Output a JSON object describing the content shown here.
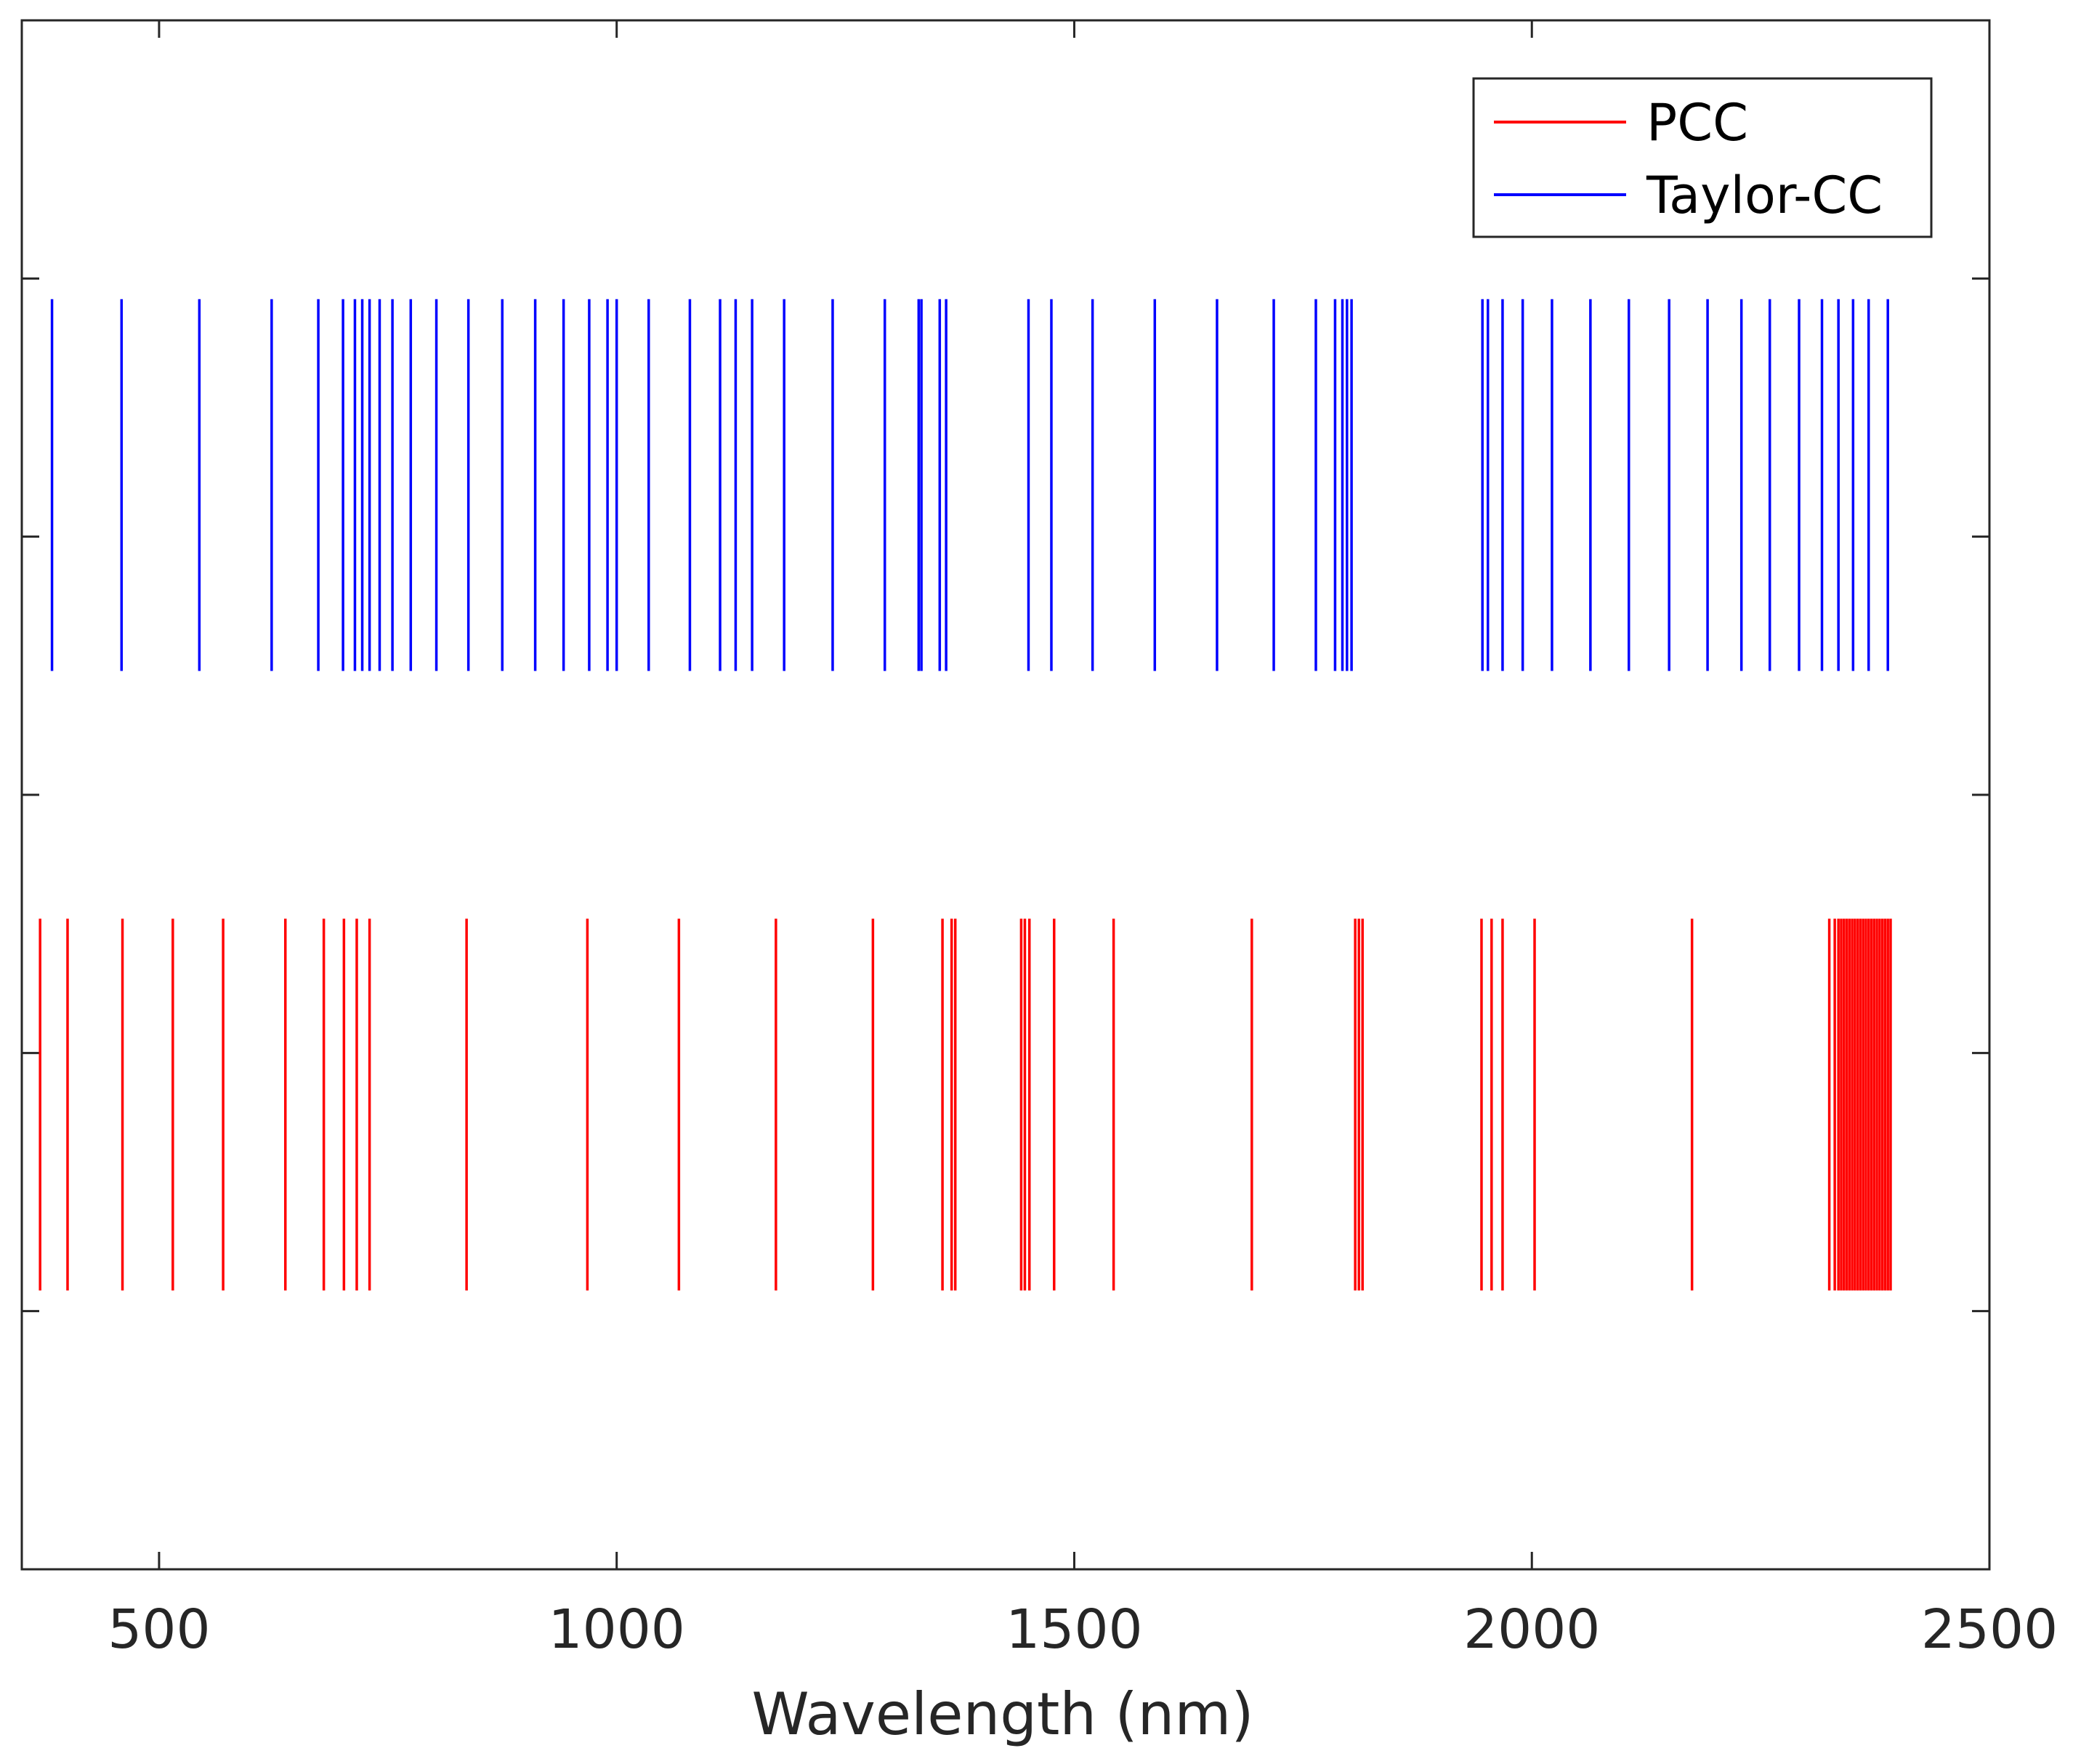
{
  "chart_data": {
    "type": "eventplot",
    "title": "",
    "xlabel": "Wavelength (nm)",
    "ylabel": "",
    "xlim": [
      350,
      2500
    ],
    "ylim": [
      0,
      1
    ],
    "xticks": [
      500,
      1000,
      1500,
      2000,
      2500
    ],
    "xtick_labels": [
      "500",
      "1000",
      "1500",
      "2000",
      "2500"
    ],
    "ytick_count": 5,
    "legend": {
      "placement": "top-right",
      "entries": [
        "PCC",
        "Taylor-CC"
      ]
    },
    "series": [
      {
        "name": "PCC",
        "color": "#ff0000",
        "row_center": 0.3,
        "row_span": [
          0.18,
          0.42
        ],
        "values": [
          370,
          400,
          460,
          515,
          570,
          638,
          680,
          702,
          716,
          730,
          836,
          968,
          1068,
          1174,
          1280,
          1356,
          1366,
          1370,
          1442,
          1446,
          1451,
          1478,
          1543,
          1694,
          1807,
          1811,
          1815,
          1945,
          1956,
          1968,
          2003,
          2175,
          2325,
          2331,
          2335,
          2338,
          2341,
          2344,
          2347,
          2350,
          2353,
          2356,
          2359,
          2362,
          2365,
          2368,
          2371,
          2374,
          2377,
          2380,
          2383,
          2386,
          2389,
          2392
        ]
      },
      {
        "name": "Taylor-CC",
        "color": "#0000ff",
        "row_center": 0.7,
        "row_span": [
          0.58,
          0.82
        ],
        "values": [
          383,
          459,
          544,
          623,
          674,
          701,
          714,
          722,
          730,
          741,
          755,
          775,
          803,
          838,
          875,
          911,
          942,
          970,
          990,
          1000,
          1035,
          1080,
          1113,
          1130,
          1148,
          1183,
          1236,
          1293,
          1330,
          1333,
          1353,
          1360,
          1450,
          1475,
          1520,
          1588,
          1656,
          1718,
          1764,
          1785,
          1793,
          1798,
          1803,
          1946,
          1952,
          1968,
          1990,
          2022,
          2064,
          2106,
          2150,
          2192,
          2229,
          2260,
          2292,
          2317,
          2335,
          2351,
          2368,
          2389
        ]
      }
    ]
  }
}
